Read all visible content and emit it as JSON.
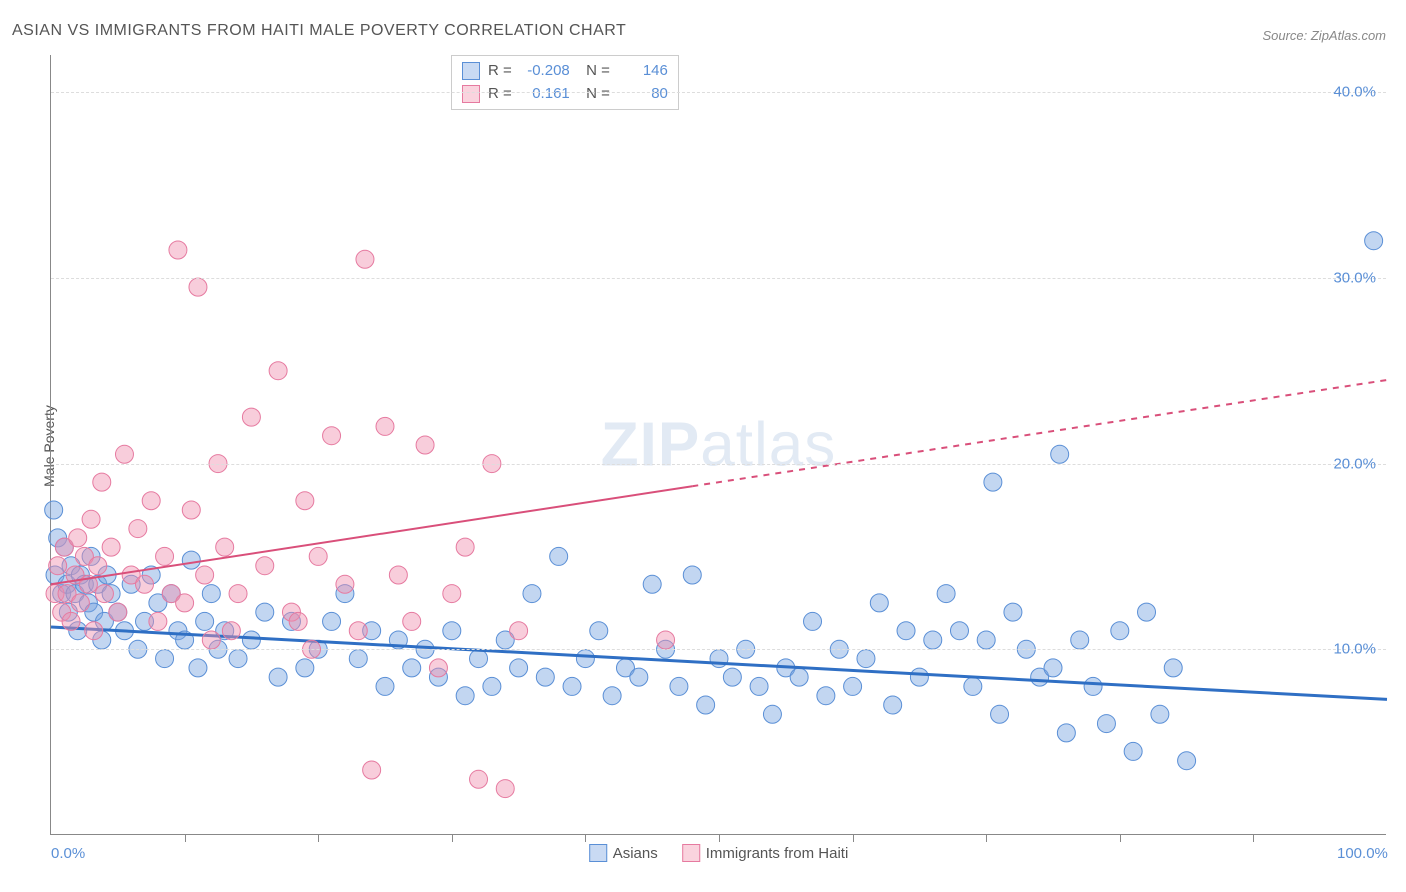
{
  "title": "ASIAN VS IMMIGRANTS FROM HAITI MALE POVERTY CORRELATION CHART",
  "source": "Source: ZipAtlas.com",
  "y_axis_label": "Male Poverty",
  "watermark": {
    "bold": "ZIP",
    "rest": "atlas"
  },
  "chart": {
    "type": "scatter",
    "xlim": [
      0,
      100
    ],
    "ylim": [
      0,
      42
    ],
    "x_ticks": [
      0,
      100
    ],
    "x_tick_labels": [
      "0.0%",
      "100.0%"
    ],
    "x_minor_ticks": [
      10,
      20,
      30,
      40,
      50,
      60,
      70,
      80,
      90
    ],
    "y_ticks": [
      10,
      20,
      30,
      40
    ],
    "y_tick_labels": [
      "10.0%",
      "20.0%",
      "30.0%",
      "40.0%"
    ],
    "grid_color": "#dddddd",
    "background_color": "#ffffff",
    "series": [
      {
        "name": "Asians",
        "color_fill": "rgba(120,165,225,0.45)",
        "color_stroke": "#5a8fd6",
        "marker_radius": 9,
        "R": "-0.208",
        "N": "146",
        "trend": {
          "x1": 0,
          "y1": 11.2,
          "x2": 100,
          "y2": 7.3,
          "color": "#2f6fc4",
          "width": 3,
          "dash_from_x": null
        },
        "points": [
          [
            0.2,
            17.5
          ],
          [
            0.3,
            14.0
          ],
          [
            0.5,
            16.0
          ],
          [
            0.8,
            13.0
          ],
          [
            1.0,
            15.5
          ],
          [
            1.2,
            13.5
          ],
          [
            1.3,
            12.0
          ],
          [
            1.5,
            14.5
          ],
          [
            1.8,
            13.0
          ],
          [
            2.0,
            11.0
          ],
          [
            2.2,
            14.0
          ],
          [
            2.5,
            13.5
          ],
          [
            2.8,
            12.5
          ],
          [
            3.0,
            15.0
          ],
          [
            3.2,
            12.0
          ],
          [
            3.5,
            13.5
          ],
          [
            3.8,
            10.5
          ],
          [
            4.0,
            11.5
          ],
          [
            4.2,
            14.0
          ],
          [
            4.5,
            13.0
          ],
          [
            5.0,
            12.0
          ],
          [
            5.5,
            11.0
          ],
          [
            6.0,
            13.5
          ],
          [
            6.5,
            10.0
          ],
          [
            7.0,
            11.5
          ],
          [
            7.5,
            14.0
          ],
          [
            8.0,
            12.5
          ],
          [
            8.5,
            9.5
          ],
          [
            9.0,
            13.0
          ],
          [
            9.5,
            11.0
          ],
          [
            10.0,
            10.5
          ],
          [
            10.5,
            14.8
          ],
          [
            11.0,
            9.0
          ],
          [
            11.5,
            11.5
          ],
          [
            12.0,
            13.0
          ],
          [
            12.5,
            10.0
          ],
          [
            13.0,
            11.0
          ],
          [
            14.0,
            9.5
          ],
          [
            15.0,
            10.5
          ],
          [
            16.0,
            12.0
          ],
          [
            17.0,
            8.5
          ],
          [
            18.0,
            11.5
          ],
          [
            19.0,
            9.0
          ],
          [
            20.0,
            10.0
          ],
          [
            21.0,
            11.5
          ],
          [
            22.0,
            13.0
          ],
          [
            23.0,
            9.5
          ],
          [
            24.0,
            11.0
          ],
          [
            25.0,
            8.0
          ],
          [
            26.0,
            10.5
          ],
          [
            27.0,
            9.0
          ],
          [
            28.0,
            10.0
          ],
          [
            29.0,
            8.5
          ],
          [
            30.0,
            11.0
          ],
          [
            31.0,
            7.5
          ],
          [
            32.0,
            9.5
          ],
          [
            33.0,
            8.0
          ],
          [
            34.0,
            10.5
          ],
          [
            35.0,
            9.0
          ],
          [
            36.0,
            13.0
          ],
          [
            37.0,
            8.5
          ],
          [
            38.0,
            15.0
          ],
          [
            39.0,
            8.0
          ],
          [
            40.0,
            9.5
          ],
          [
            41.0,
            11.0
          ],
          [
            42.0,
            7.5
          ],
          [
            43.0,
            9.0
          ],
          [
            44.0,
            8.5
          ],
          [
            45.0,
            13.5
          ],
          [
            46.0,
            10.0
          ],
          [
            47.0,
            8.0
          ],
          [
            48.0,
            14.0
          ],
          [
            49.0,
            7.0
          ],
          [
            50.0,
            9.5
          ],
          [
            51.0,
            8.5
          ],
          [
            52.0,
            10.0
          ],
          [
            53.0,
            8.0
          ],
          [
            54.0,
            6.5
          ],
          [
            55.0,
            9.0
          ],
          [
            56.0,
            8.5
          ],
          [
            57.0,
            11.5
          ],
          [
            58.0,
            7.5
          ],
          [
            59.0,
            10.0
          ],
          [
            60.0,
            8.0
          ],
          [
            61.0,
            9.5
          ],
          [
            62.0,
            12.5
          ],
          [
            63.0,
            7.0
          ],
          [
            64.0,
            11.0
          ],
          [
            65.0,
            8.5
          ],
          [
            66.0,
            10.5
          ],
          [
            67.0,
            13.0
          ],
          [
            68.0,
            11.0
          ],
          [
            69.0,
            8.0
          ],
          [
            70.0,
            10.5
          ],
          [
            70.5,
            19.0
          ],
          [
            71.0,
            6.5
          ],
          [
            72.0,
            12.0
          ],
          [
            73.0,
            10.0
          ],
          [
            74.0,
            8.5
          ],
          [
            75.0,
            9.0
          ],
          [
            75.5,
            20.5
          ],
          [
            76.0,
            5.5
          ],
          [
            77.0,
            10.5
          ],
          [
            78.0,
            8.0
          ],
          [
            79.0,
            6.0
          ],
          [
            80.0,
            11.0
          ],
          [
            81.0,
            4.5
          ],
          [
            82.0,
            12.0
          ],
          [
            83.0,
            6.5
          ],
          [
            84.0,
            9.0
          ],
          [
            85.0,
            4.0
          ],
          [
            99.0,
            32.0
          ]
        ]
      },
      {
        "name": "Immigrants from Haiti",
        "color_fill": "rgba(240,145,175,0.45)",
        "color_stroke": "#e67aa0",
        "marker_radius": 9,
        "R": "0.161",
        "N": "80",
        "trend": {
          "x1": 0,
          "y1": 13.5,
          "x2": 100,
          "y2": 24.5,
          "color": "#d94f7a",
          "width": 2,
          "dash_from_x": 48
        },
        "points": [
          [
            0.3,
            13.0
          ],
          [
            0.5,
            14.5
          ],
          [
            0.8,
            12.0
          ],
          [
            1.0,
            15.5
          ],
          [
            1.2,
            13.0
          ],
          [
            1.5,
            11.5
          ],
          [
            1.8,
            14.0
          ],
          [
            2.0,
            16.0
          ],
          [
            2.2,
            12.5
          ],
          [
            2.5,
            15.0
          ],
          [
            2.8,
            13.5
          ],
          [
            3.0,
            17.0
          ],
          [
            3.2,
            11.0
          ],
          [
            3.5,
            14.5
          ],
          [
            3.8,
            19.0
          ],
          [
            4.0,
            13.0
          ],
          [
            4.5,
            15.5
          ],
          [
            5.0,
            12.0
          ],
          [
            5.5,
            20.5
          ],
          [
            6.0,
            14.0
          ],
          [
            6.5,
            16.5
          ],
          [
            7.0,
            13.5
          ],
          [
            7.5,
            18.0
          ],
          [
            8.0,
            11.5
          ],
          [
            8.5,
            15.0
          ],
          [
            9.0,
            13.0
          ],
          [
            9.5,
            31.5
          ],
          [
            10.0,
            12.5
          ],
          [
            10.5,
            17.5
          ],
          [
            11.0,
            29.5
          ],
          [
            11.5,
            14.0
          ],
          [
            12.0,
            10.5
          ],
          [
            12.5,
            20.0
          ],
          [
            13.0,
            15.5
          ],
          [
            13.5,
            11.0
          ],
          [
            14.0,
            13.0
          ],
          [
            15.0,
            22.5
          ],
          [
            16.0,
            14.5
          ],
          [
            17.0,
            25.0
          ],
          [
            18.0,
            12.0
          ],
          [
            18.5,
            11.5
          ],
          [
            19.0,
            18.0
          ],
          [
            19.5,
            10.0
          ],
          [
            20.0,
            15.0
          ],
          [
            21.0,
            21.5
          ],
          [
            22.0,
            13.5
          ],
          [
            23.0,
            11.0
          ],
          [
            23.5,
            31.0
          ],
          [
            24.0,
            3.5
          ],
          [
            25.0,
            22.0
          ],
          [
            26.0,
            14.0
          ],
          [
            27.0,
            11.5
          ],
          [
            28.0,
            21.0
          ],
          [
            29.0,
            9.0
          ],
          [
            30.0,
            13.0
          ],
          [
            31.0,
            15.5
          ],
          [
            32.0,
            3.0
          ],
          [
            33.0,
            20.0
          ],
          [
            34.0,
            2.5
          ],
          [
            35.0,
            11.0
          ],
          [
            46.0,
            10.5
          ]
        ]
      }
    ]
  },
  "legend": {
    "items": [
      {
        "label": "Asians",
        "swatch": "blue"
      },
      {
        "label": "Immigrants from Haiti",
        "swatch": "pink"
      }
    ]
  }
}
